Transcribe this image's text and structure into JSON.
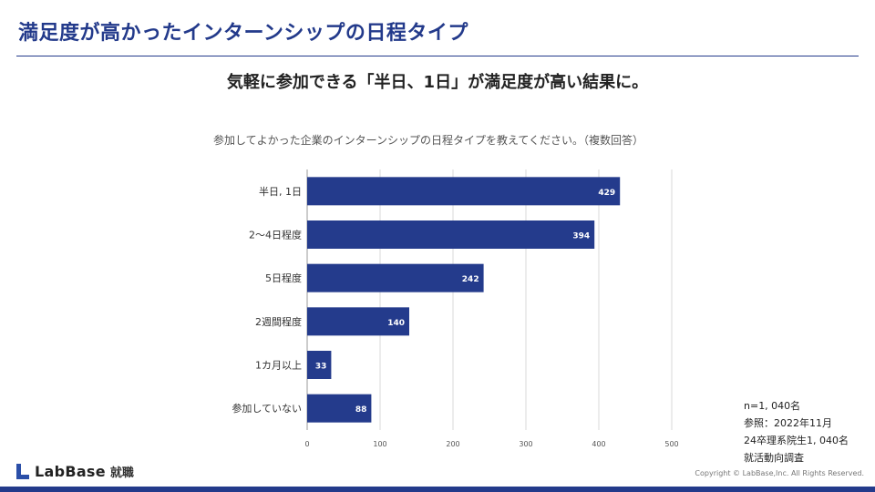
{
  "page": {
    "title": "満足度が高かったインターンシップの日程タイプ",
    "subtitle": "気軽に参加できる「半日、1日」が満足度が高い結果に。",
    "copyright": "Copyright © LabBase,Inc. All Rights Reserved."
  },
  "logo": {
    "name": "LabBase",
    "suffix": "就職"
  },
  "notes": [
    "n=1, 040名",
    "参照：2022年11月",
    "24卒理系院生1, 040名",
    "就活動向調査"
  ],
  "colors": {
    "brand": "#233a8b",
    "bar": "#243b8c",
    "grid": "#d9d9d9"
  },
  "chart_data": {
    "type": "bar",
    "orientation": "horizontal",
    "title": "参加してよかった企業のインターンシップの日程タイプを教えてください。（複数回答）",
    "categories": [
      "半日, 1日",
      "2〜4日程度",
      "5日程度",
      "2週間程度",
      "1カ月以上",
      "参加していない"
    ],
    "values": [
      429,
      394,
      242,
      140,
      33,
      88
    ],
    "xlim": [
      0,
      500
    ],
    "xticks": [
      "0",
      "100",
      "200",
      "300",
      "400",
      "500"
    ],
    "grid": true,
    "xlabel": "",
    "ylabel": ""
  }
}
